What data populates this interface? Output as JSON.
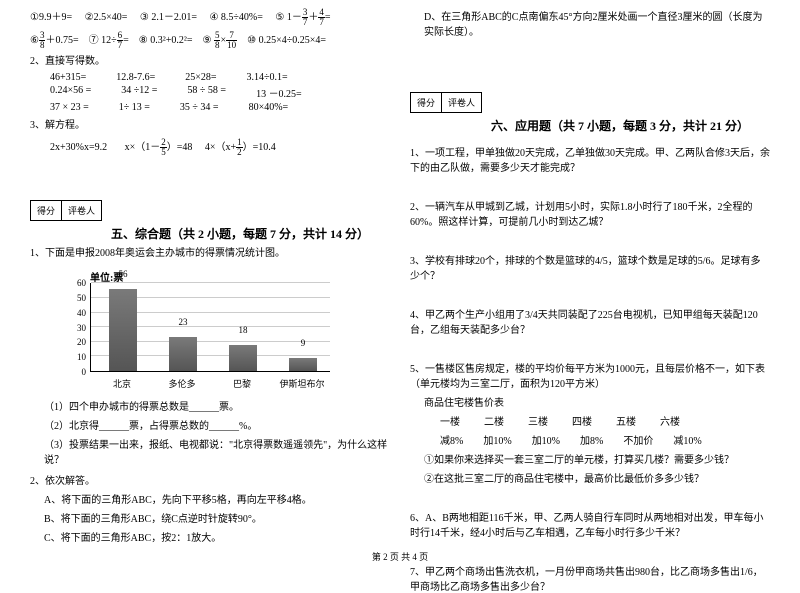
{
  "leftCol": {
    "calcRows": [
      [
        "①9.9＋9=",
        "②2.5×40=",
        "③ 2.1－2.01=",
        "④ 8.5÷40%=",
        "⑤ 1－",
        {
          "frac": [
            3,
            7
          ]
        },
        "＋",
        {
          "frac": [
            4,
            7
          ]
        },
        "="
      ],
      [
        "⑥",
        {
          "frac": [
            3,
            8
          ]
        },
        "＋0.75=",
        "⑦ 12÷",
        {
          "frac": [
            6,
            7
          ]
        },
        "=",
        "⑧ 0.3²+0.2²=",
        "⑨ ",
        {
          "frac": [
            5,
            8
          ]
        },
        "×",
        {
          "frac": [
            7,
            10
          ]
        },
        "=",
        "⑩ 0.25×4÷0.25×4="
      ]
    ],
    "verticalLabel": "2、直接写得数。",
    "numRows": [
      [
        "46+315=",
        "12.8-7.6=",
        "25×28=",
        "3.14÷0.1="
      ],
      [
        "0.24×56 =",
        "34 ÷12 =",
        "58 ÷ 58 =",
        "13 －0.25="
      ],
      [
        "37 × 23 =",
        "1÷ 13 =",
        "35 ÷ 34 =",
        "80×40%="
      ]
    ],
    "solveLabel": "3、解方程。",
    "equations": "2x+30%x=9.2        x×（1－{2/5}）=48      4×（x+{1/2}）=10.4",
    "scoreBox": {
      "left": "得分",
      "right": "评卷人"
    },
    "section5Title": "五、综合题（共 2 小题，每题 7 分，共计 14 分）",
    "q1": "1、下面是申报2008年奥运会主办城市的得票情况统计图。",
    "chart": {
      "unit": "单位:票",
      "ymax": 60,
      "ytick": 10,
      "yticks": [
        60,
        50,
        40,
        30,
        20,
        10,
        0
      ],
      "bars": [
        {
          "label": "北京",
          "value": 56,
          "x": 18
        },
        {
          "label": "多伦多",
          "value": 23,
          "x": 78
        },
        {
          "label": "巴黎",
          "value": 18,
          "x": 138
        },
        {
          "label": "伊斯坦布尔",
          "value": 9,
          "x": 198
        }
      ],
      "bar_color": "#606060",
      "grid_color": "#cccccc",
      "axis_color": "#000000"
    },
    "subQs": [
      "（1）四个申办城市的得票总数是______票。",
      "（2）北京得______票，占得票总数的______%。",
      "（3）投票结果一出来，报纸、电视都说：\"北京得票数遥遥领先\"，为什么这样说？"
    ],
    "q2": "2、依次解答。",
    "q2subs": [
      "A、将下面的三角形ABC，先向下平移5格，再向左平移4格。",
      "B、将下面的三角形ABC，绕C点逆时针旋转90°。",
      "C、将下面的三角形ABC，按2：1放大。"
    ]
  },
  "rightCol": {
    "topLine": "D、在三角形ABC的C点南偏东45°方向2厘米处画一个直径3厘米的圆（长度为实际长度）。",
    "scoreBox": {
      "left": "得分",
      "right": "评卷人"
    },
    "section6Title": "六、应用题（共 7 小题，每题 3 分，共计 21 分）",
    "questions": [
      "1、一项工程，甲单独做20天完成，乙单独做30天完成。甲、乙两队合修3天后，余下的由乙队做，需要多少天才能完成？",
      "2、一辆汽车从甲城到乙城，计划用5小时，实际1.8小时行了180千米，2全程的60%。照这样计算，可提前几小时到达乙城？",
      "3、学校有排球20个，排球的个数是篮球的4/5，篮球个数是足球的5/6。足球有多少个？",
      "4、甲乙两个生产小组用了3/4天共同装配了225台电视机，已知甲组每天装配120台，乙组每天装配多少台？"
    ],
    "q5": {
      "intro": "5、一售楼区售房规定，楼的平均价每平方米为1000元，且每层价格不一，如下表（单元楼均为三室二厅，面积为120平方米）",
      "tableTitle": "商品住宅楼售价表",
      "headers": [
        "一楼",
        "二楼",
        "三楼",
        "四楼",
        "五楼",
        "六楼"
      ],
      "values": [
        "减8%",
        "加10%",
        "加10%",
        "加8%",
        "不加价",
        "减10%"
      ],
      "subA": "①如果你来选择买一套三室二厅的单元楼，打算买几楼？需要多少钱？",
      "subB": "②在这批三室二厅的商品住宅楼中，最高价比最低价多多少钱？"
    },
    "q6": "6、A、B两地相距116千米，甲、乙两人骑自行车同时从两地相对出发，甲车每小时行14千米，经4小时后与乙车相遇，乙车每小时行多少千米？",
    "q7": "7、甲乙两个商场出售洗衣机，一月份甲商场共售出980台，比乙商场多售出1/6，甲商场比乙商场多售出多少台？"
  },
  "footer": "第 2 页  共 4 页"
}
